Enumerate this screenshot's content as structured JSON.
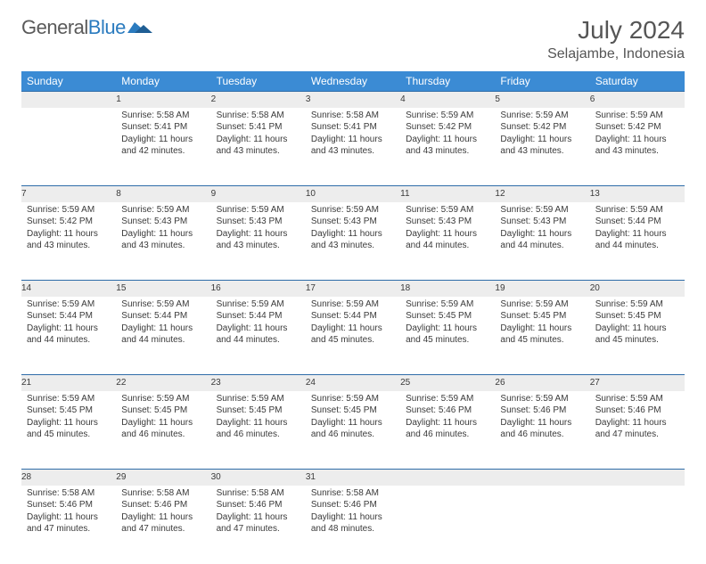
{
  "logo": {
    "word1": "General",
    "word2": "Blue"
  },
  "title": "July 2024",
  "location": "Selajambe, Indonesia",
  "colors": {
    "header_bg": "#3b8bd4",
    "header_text": "#ffffff",
    "daynum_bg": "#ededed",
    "daynum_border": "#2e6ca8",
    "body_text": "#3a3a3a",
    "logo_gray": "#5a5a5a",
    "logo_blue": "#2b7bbf"
  },
  "day_headers": [
    "Sunday",
    "Monday",
    "Tuesday",
    "Wednesday",
    "Thursday",
    "Friday",
    "Saturday"
  ],
  "weeks": [
    [
      {
        "n": "",
        "t": ""
      },
      {
        "n": "1",
        "t": "Sunrise: 5:58 AM\nSunset: 5:41 PM\nDaylight: 11 hours and 42 minutes."
      },
      {
        "n": "2",
        "t": "Sunrise: 5:58 AM\nSunset: 5:41 PM\nDaylight: 11 hours and 43 minutes."
      },
      {
        "n": "3",
        "t": "Sunrise: 5:58 AM\nSunset: 5:41 PM\nDaylight: 11 hours and 43 minutes."
      },
      {
        "n": "4",
        "t": "Sunrise: 5:59 AM\nSunset: 5:42 PM\nDaylight: 11 hours and 43 minutes."
      },
      {
        "n": "5",
        "t": "Sunrise: 5:59 AM\nSunset: 5:42 PM\nDaylight: 11 hours and 43 minutes."
      },
      {
        "n": "6",
        "t": "Sunrise: 5:59 AM\nSunset: 5:42 PM\nDaylight: 11 hours and 43 minutes."
      }
    ],
    [
      {
        "n": "7",
        "t": "Sunrise: 5:59 AM\nSunset: 5:42 PM\nDaylight: 11 hours and 43 minutes."
      },
      {
        "n": "8",
        "t": "Sunrise: 5:59 AM\nSunset: 5:43 PM\nDaylight: 11 hours and 43 minutes."
      },
      {
        "n": "9",
        "t": "Sunrise: 5:59 AM\nSunset: 5:43 PM\nDaylight: 11 hours and 43 minutes."
      },
      {
        "n": "10",
        "t": "Sunrise: 5:59 AM\nSunset: 5:43 PM\nDaylight: 11 hours and 43 minutes."
      },
      {
        "n": "11",
        "t": "Sunrise: 5:59 AM\nSunset: 5:43 PM\nDaylight: 11 hours and 44 minutes."
      },
      {
        "n": "12",
        "t": "Sunrise: 5:59 AM\nSunset: 5:43 PM\nDaylight: 11 hours and 44 minutes."
      },
      {
        "n": "13",
        "t": "Sunrise: 5:59 AM\nSunset: 5:44 PM\nDaylight: 11 hours and 44 minutes."
      }
    ],
    [
      {
        "n": "14",
        "t": "Sunrise: 5:59 AM\nSunset: 5:44 PM\nDaylight: 11 hours and 44 minutes."
      },
      {
        "n": "15",
        "t": "Sunrise: 5:59 AM\nSunset: 5:44 PM\nDaylight: 11 hours and 44 minutes."
      },
      {
        "n": "16",
        "t": "Sunrise: 5:59 AM\nSunset: 5:44 PM\nDaylight: 11 hours and 44 minutes."
      },
      {
        "n": "17",
        "t": "Sunrise: 5:59 AM\nSunset: 5:44 PM\nDaylight: 11 hours and 45 minutes."
      },
      {
        "n": "18",
        "t": "Sunrise: 5:59 AM\nSunset: 5:45 PM\nDaylight: 11 hours and 45 minutes."
      },
      {
        "n": "19",
        "t": "Sunrise: 5:59 AM\nSunset: 5:45 PM\nDaylight: 11 hours and 45 minutes."
      },
      {
        "n": "20",
        "t": "Sunrise: 5:59 AM\nSunset: 5:45 PM\nDaylight: 11 hours and 45 minutes."
      }
    ],
    [
      {
        "n": "21",
        "t": "Sunrise: 5:59 AM\nSunset: 5:45 PM\nDaylight: 11 hours and 45 minutes."
      },
      {
        "n": "22",
        "t": "Sunrise: 5:59 AM\nSunset: 5:45 PM\nDaylight: 11 hours and 46 minutes."
      },
      {
        "n": "23",
        "t": "Sunrise: 5:59 AM\nSunset: 5:45 PM\nDaylight: 11 hours and 46 minutes."
      },
      {
        "n": "24",
        "t": "Sunrise: 5:59 AM\nSunset: 5:45 PM\nDaylight: 11 hours and 46 minutes."
      },
      {
        "n": "25",
        "t": "Sunrise: 5:59 AM\nSunset: 5:46 PM\nDaylight: 11 hours and 46 minutes."
      },
      {
        "n": "26",
        "t": "Sunrise: 5:59 AM\nSunset: 5:46 PM\nDaylight: 11 hours and 46 minutes."
      },
      {
        "n": "27",
        "t": "Sunrise: 5:59 AM\nSunset: 5:46 PM\nDaylight: 11 hours and 47 minutes."
      }
    ],
    [
      {
        "n": "28",
        "t": "Sunrise: 5:58 AM\nSunset: 5:46 PM\nDaylight: 11 hours and 47 minutes."
      },
      {
        "n": "29",
        "t": "Sunrise: 5:58 AM\nSunset: 5:46 PM\nDaylight: 11 hours and 47 minutes."
      },
      {
        "n": "30",
        "t": "Sunrise: 5:58 AM\nSunset: 5:46 PM\nDaylight: 11 hours and 47 minutes."
      },
      {
        "n": "31",
        "t": "Sunrise: 5:58 AM\nSunset: 5:46 PM\nDaylight: 11 hours and 48 minutes."
      },
      {
        "n": "",
        "t": ""
      },
      {
        "n": "",
        "t": ""
      },
      {
        "n": "",
        "t": ""
      }
    ]
  ]
}
